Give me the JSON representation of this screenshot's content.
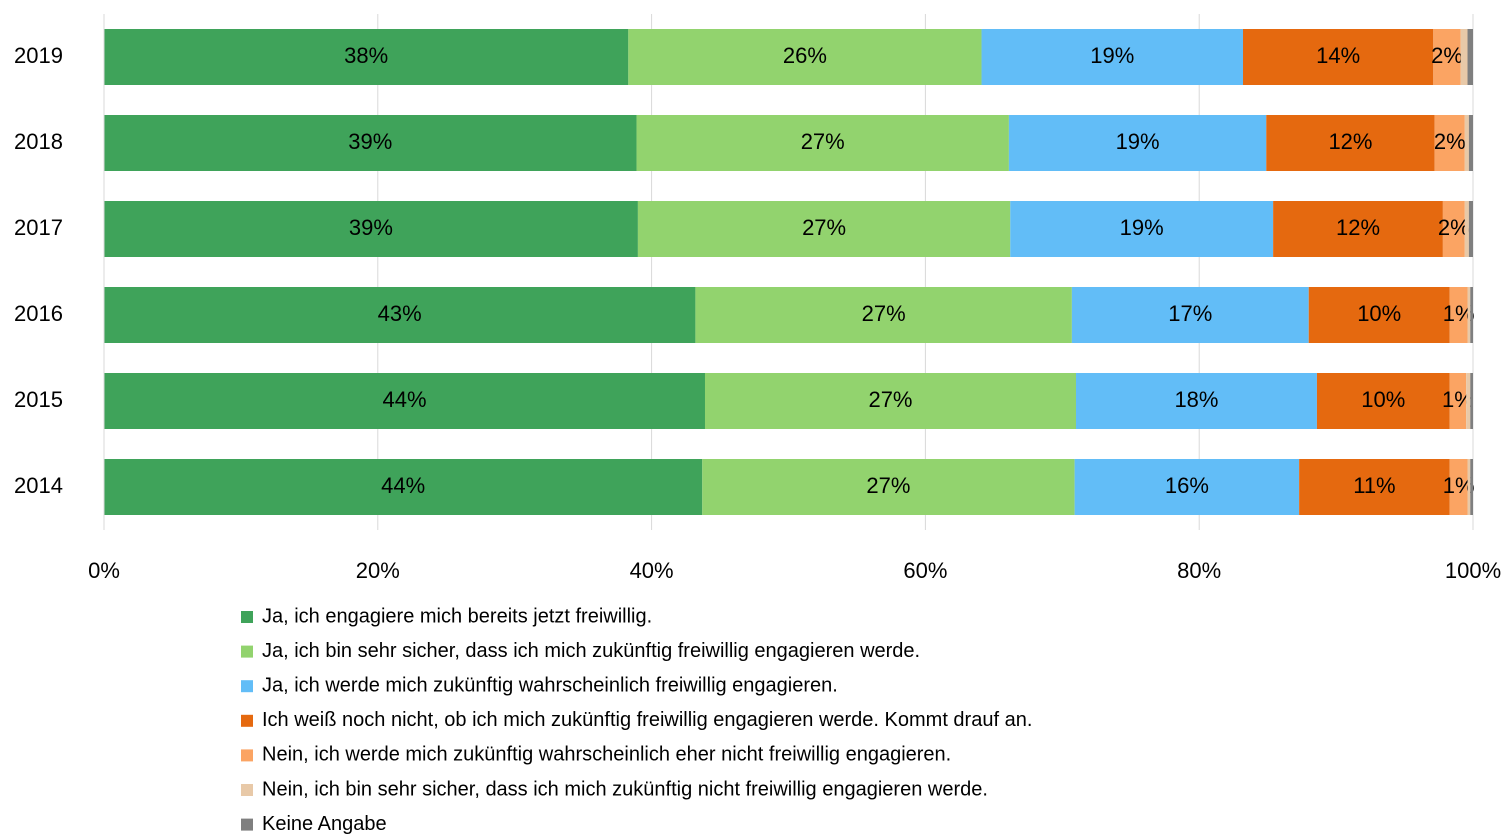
{
  "chart_data": {
    "type": "stacked-bar-horizontal",
    "categories": [
      "2019",
      "2018",
      "2017",
      "2016",
      "2015",
      "2014"
    ],
    "xlim": [
      0,
      100
    ],
    "xticks": [
      {
        "value": 0,
        "label": "0%"
      },
      {
        "value": 20,
        "label": "20%"
      },
      {
        "value": 40,
        "label": "40%"
      },
      {
        "value": 60,
        "label": "60%"
      },
      {
        "value": 80,
        "label": "80%"
      },
      {
        "value": 100,
        "label": "100%"
      }
    ],
    "grid": true,
    "legend": "bottom",
    "series": [
      {
        "name": "Ja, ich engagiere mich bereits jetzt freiwillig.",
        "color": "#3fa35a",
        "values": [
          38.3,
          38.9,
          39.0,
          43.2,
          43.9,
          43.7
        ],
        "value_labels": [
          "38%",
          "39%",
          "39%",
          "43%",
          "44%",
          "44%"
        ]
      },
      {
        "name": "Ja, ich bin sehr sicher, dass ich mich zukünftig freiwillig engagieren werde.",
        "color": "#92d36e",
        "values": [
          25.8,
          27.2,
          27.2,
          27.5,
          27.1,
          27.2
        ],
        "value_labels": [
          "26%",
          "27%",
          "27%",
          "27%",
          "27%",
          "27%"
        ]
      },
      {
        "name": "Ja, ich werde mich zukünftig wahrscheinlich freiwillig engagieren.",
        "color": "#62bdf7",
        "values": [
          19.1,
          18.8,
          19.2,
          17.3,
          17.6,
          16.4
        ],
        "value_labels": [
          "19%",
          "19%",
          "19%",
          "17%",
          "18%",
          "16%"
        ]
      },
      {
        "name": "Ich weiß noch nicht, ob ich mich zukünftig freiwillig engagieren werde. Kommt drauf an.",
        "color": "#e5690f",
        "values": [
          13.9,
          12.3,
          12.4,
          10.3,
          9.7,
          11.0
        ],
        "value_labels": [
          "14%",
          "12%",
          "12%",
          "10%",
          "10%",
          "11%"
        ]
      },
      {
        "name": "Nein, ich werde mich zukünftig wahrscheinlich eher nicht freiwillig engagieren.",
        "color": "#fba463",
        "values": [
          2.0,
          2.2,
          1.6,
          1.3,
          1.2,
          1.3
        ],
        "value_labels": [
          "2%",
          "2%",
          "2%",
          "1%",
          "1%",
          "1%"
        ]
      },
      {
        "name": "Nein, ich bin sehr sicher, dass ich mich zukünftig nicht freiwillig engagieren werde.",
        "color": "#e8c9a8",
        "values": [
          0.5,
          0.3,
          0.3,
          0.2,
          0.3,
          0.2
        ]
      },
      {
        "name": "Keine Angabe",
        "color": "#7f7f7f",
        "values": [
          0.4,
          0.3,
          0.3,
          0.2,
          0.2,
          0.2
        ]
      }
    ]
  }
}
